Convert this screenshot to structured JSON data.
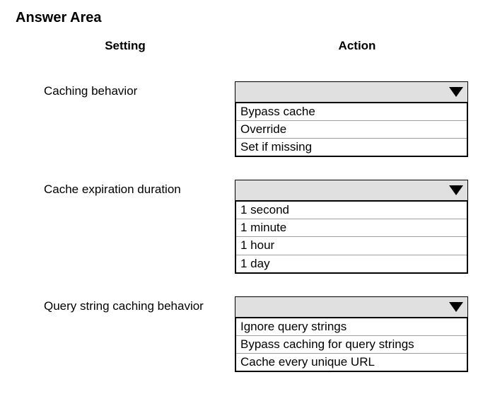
{
  "title": "Answer Area",
  "headers": {
    "setting": "Setting",
    "action": "Action"
  },
  "rows": [
    {
      "label": "Caching behavior",
      "options": [
        "Bypass cache",
        "Override",
        "Set if missing"
      ]
    },
    {
      "label": "Cache expiration duration",
      "options": [
        "1 second",
        "1 minute",
        "1 hour",
        "1 day"
      ]
    },
    {
      "label": "Query string caching behavior",
      "options": [
        "Ignore query strings",
        "Bypass caching for query strings",
        "Cache every unique URL"
      ]
    }
  ],
  "colors": {
    "dropdown_header_bg": "#e0e0e0",
    "border": "#000000",
    "option_border": "#a0a0a0",
    "text": "#000000",
    "background": "#ffffff"
  },
  "fonts": {
    "title_size": 20,
    "header_size": 17,
    "body_size": 17
  }
}
